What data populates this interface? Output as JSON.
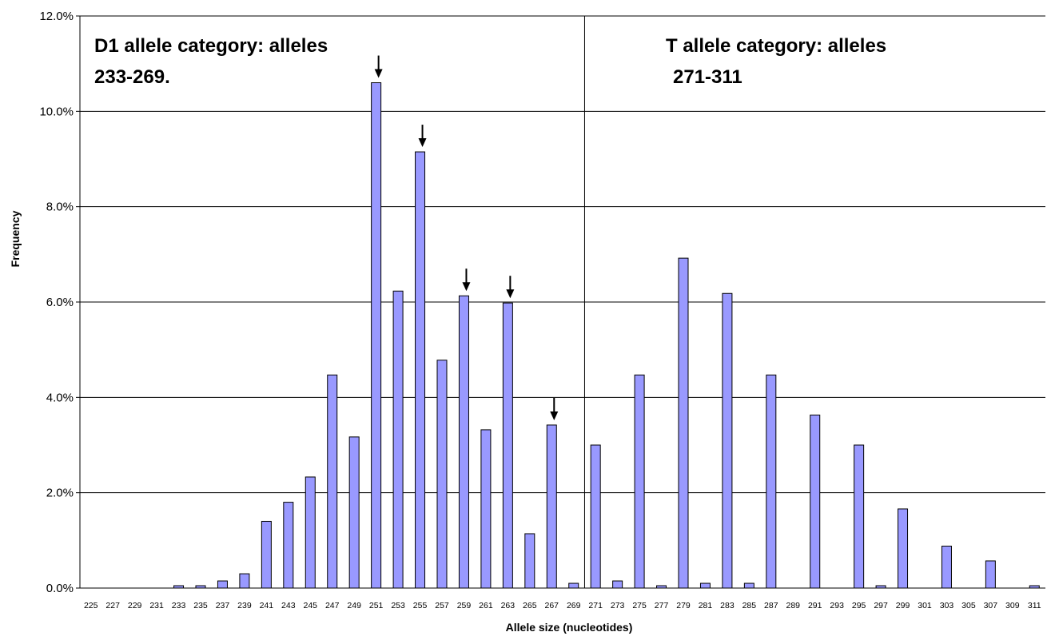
{
  "chart_data": {
    "type": "bar",
    "xlabel": "Allele size (nucleotides)",
    "ylabel": "Frequency",
    "ylim": [
      0,
      12
    ],
    "yticks": [
      "0.0%",
      "2.0%",
      "4.0%",
      "6.0%",
      "8.0%",
      "10.0%",
      "12.0%"
    ],
    "grid": "horizontal",
    "bar_color": "#9999ff",
    "categories": [
      "225",
      "227",
      "229",
      "231",
      "233",
      "235",
      "237",
      "239",
      "241",
      "243",
      "245",
      "247",
      "249",
      "251",
      "253",
      "255",
      "257",
      "259",
      "261",
      "263",
      "265",
      "267",
      "269",
      "271",
      "273",
      "275",
      "277",
      "279",
      "281",
      "283",
      "285",
      "287",
      "289",
      "291",
      "293",
      "295",
      "297",
      "299",
      "301",
      "303",
      "305",
      "307",
      "309",
      "311"
    ],
    "values": [
      0,
      0,
      0,
      0,
      0.05,
      0.05,
      0.15,
      0.3,
      1.4,
      1.8,
      2.33,
      4.47,
      3.17,
      10.6,
      6.23,
      9.15,
      4.78,
      6.13,
      3.32,
      5.98,
      1.14,
      3.42,
      0.1,
      3.0,
      0.15,
      4.47,
      0.05,
      6.92,
      0.1,
      6.18,
      0.1,
      4.47,
      0,
      3.63,
      0,
      3.0,
      0.05,
      1.66,
      0,
      0.88,
      0,
      0.57,
      0,
      0.05
    ],
    "category_divider_after": "269",
    "arrows_at": [
      "251",
      "255",
      "259",
      "263",
      "267"
    ],
    "annotations": [
      {
        "id": "d1",
        "line1": "D1 allele category: alleles",
        "line2": "233-269."
      },
      {
        "id": "t",
        "line1": "T allele category: alleles",
        "line2": "271-311"
      }
    ]
  }
}
